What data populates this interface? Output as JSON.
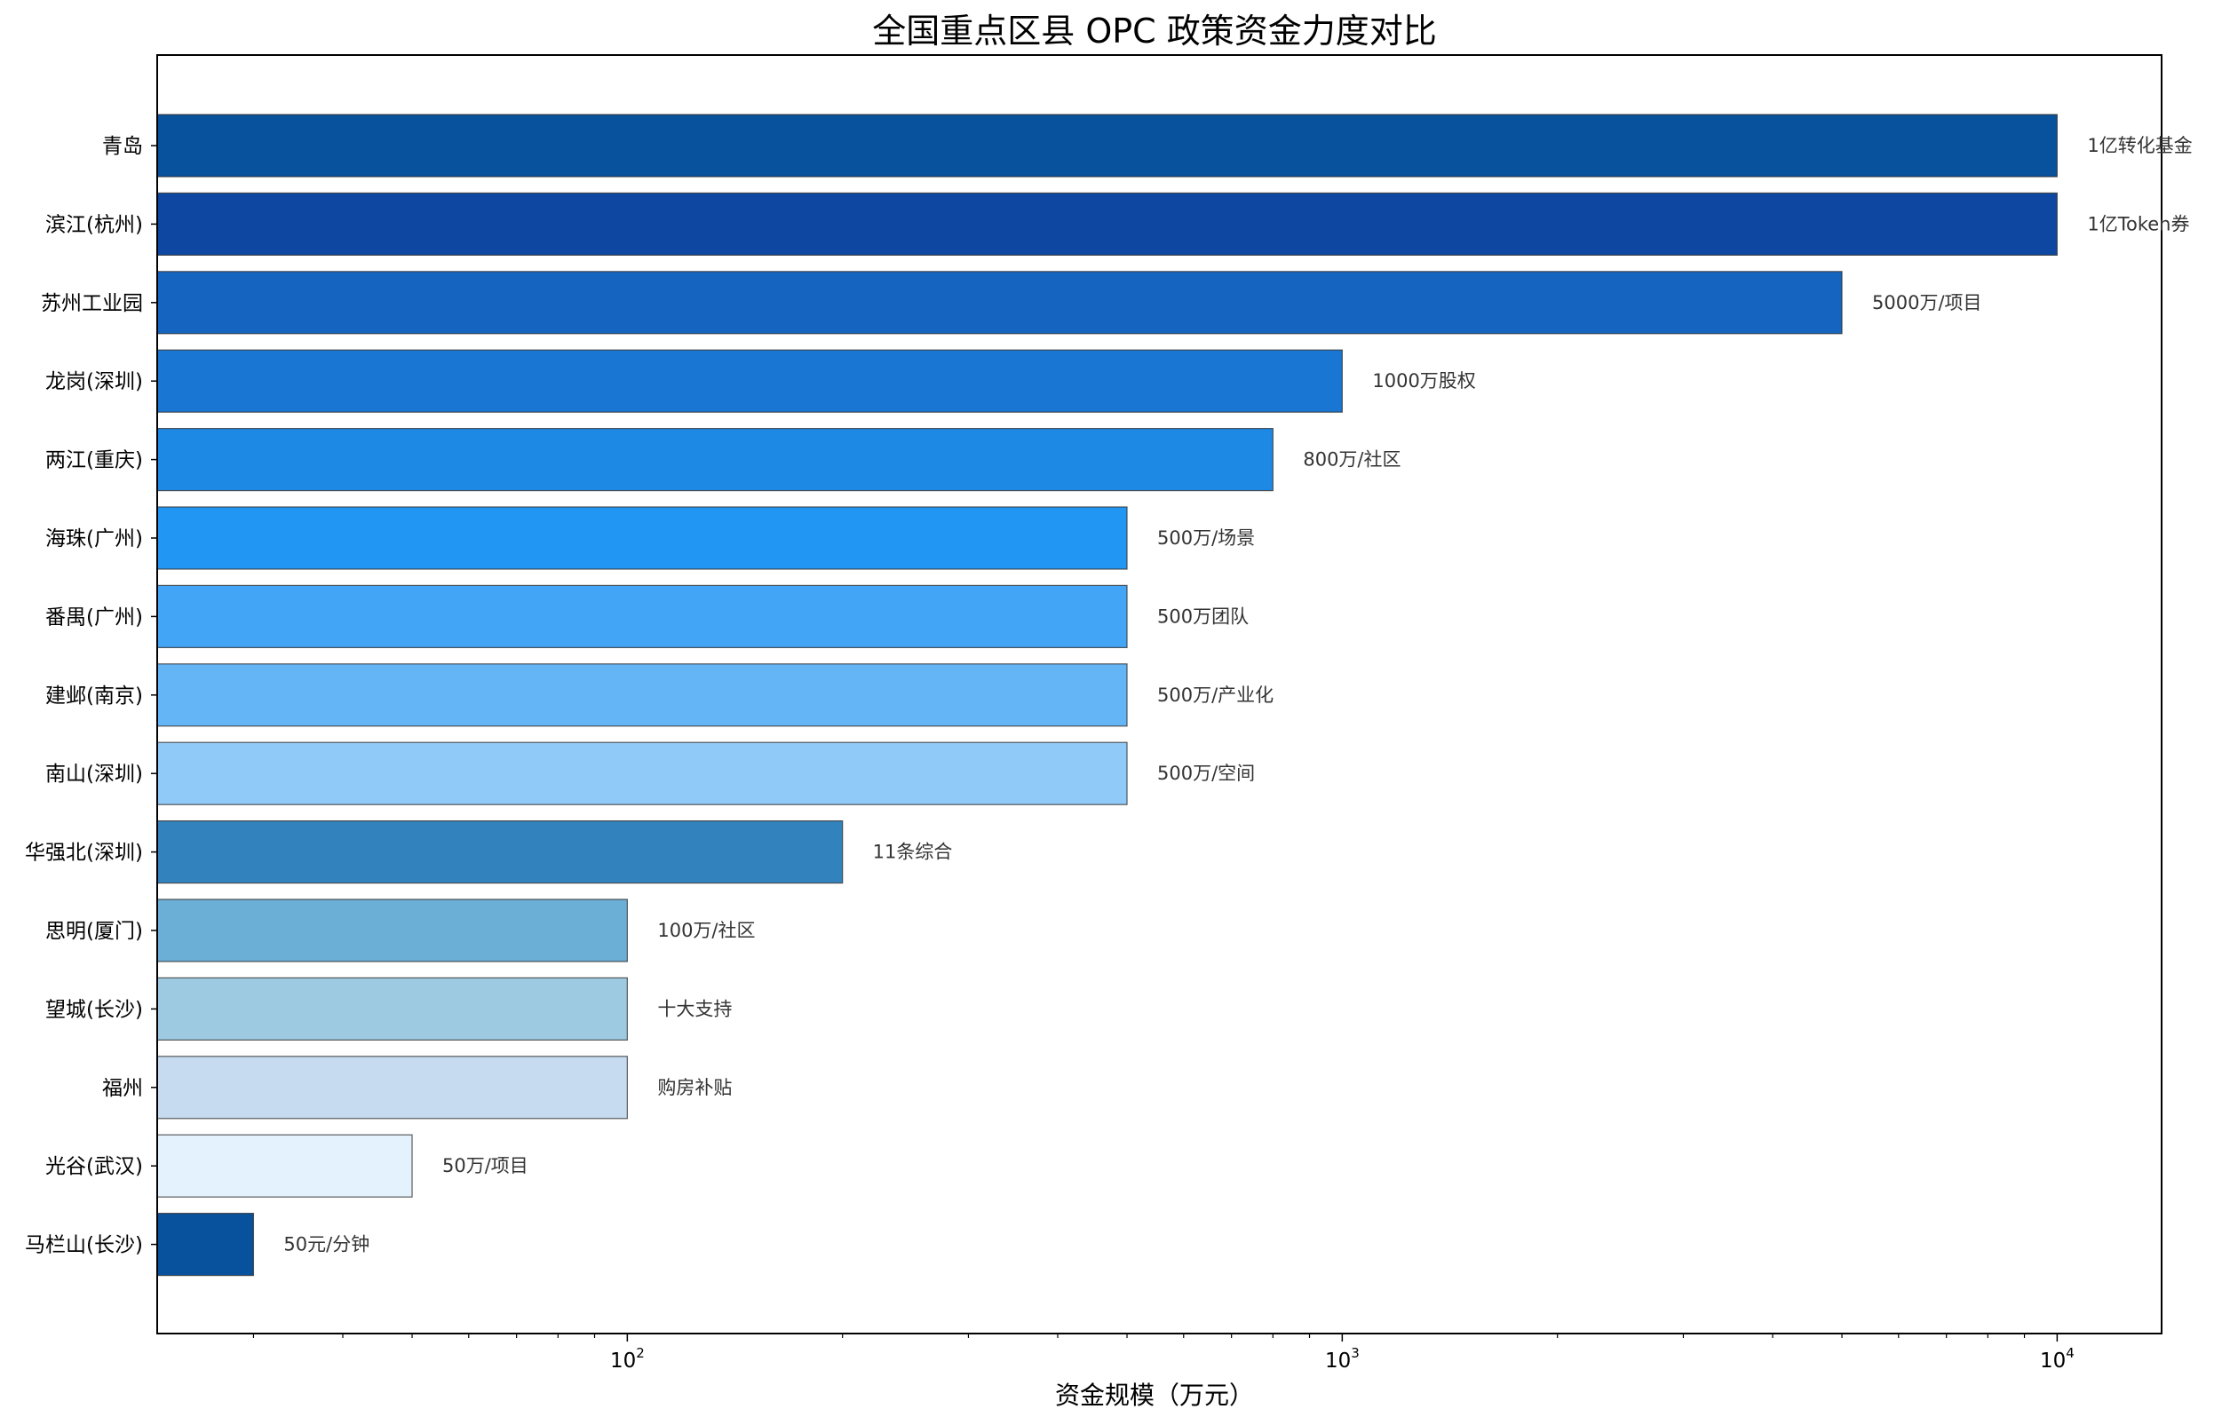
{
  "chart_data": {
    "type": "bar",
    "orientation": "horizontal",
    "title": "全国重点区县 OPC 政策资金力度对比",
    "xlabel": "资金规模（万元）",
    "ylabel": "",
    "x_scale": "log",
    "xlim": [
      22,
      14000
    ],
    "x_ticks": [
      {
        "value": 100,
        "base": "10",
        "exp": "2"
      },
      {
        "value": 1000,
        "base": "10",
        "exp": "3"
      },
      {
        "value": 10000,
        "base": "10",
        "exp": "4"
      }
    ],
    "grid": false,
    "legend": "none",
    "categories": [
      "青岛",
      "滨江(杭州)",
      "苏州工业园",
      "龙岗(深圳)",
      "两江(重庆)",
      "海珠(广州)",
      "番禺(广州)",
      "建邺(南京)",
      "南山(深圳)",
      "华强北(深圳)",
      "思明(厦门)",
      "望城(长沙)",
      "福州",
      "光谷(武汉)",
      "马栏山(长沙)"
    ],
    "values": [
      10000,
      10000,
      5000,
      1000,
      800,
      500,
      500,
      500,
      500,
      200,
      100,
      100,
      100,
      50,
      30
    ],
    "annotations": [
      "1亿转化基金",
      "1亿Token券",
      "5000万/项目",
      "1000万股权",
      "800万/社区",
      "500万/场景",
      "500万团队",
      "500万/产业化",
      "500万/空间",
      "11条综合",
      "100万/社区",
      "十大支持",
      "购房补贴",
      "50万/项目",
      "50元/分钟"
    ],
    "colors": [
      "#08519c",
      "#0d47a1",
      "#1565c0",
      "#1976d2",
      "#1e88e5",
      "#2196f3",
      "#42a5f5",
      "#64b5f6",
      "#90caf9",
      "#3182bd",
      "#6baed6",
      "#9ecae1",
      "#c6dbef",
      "#e3f2fd",
      "#08519c"
    ]
  }
}
